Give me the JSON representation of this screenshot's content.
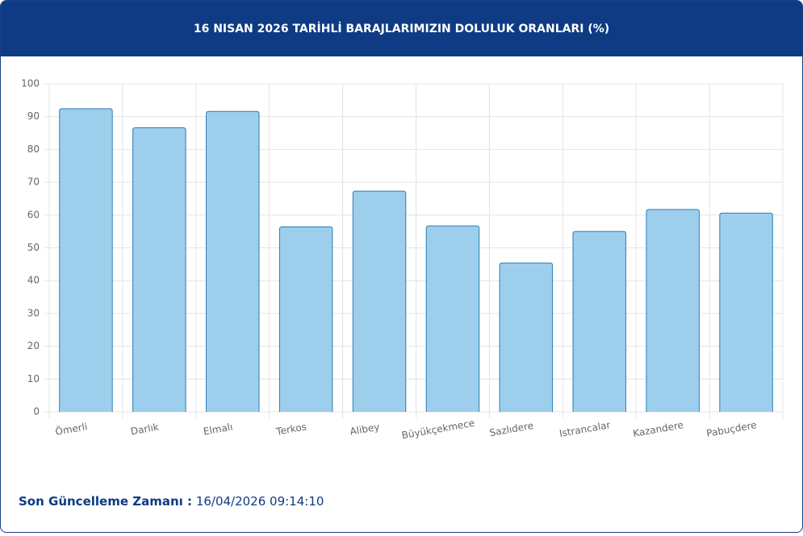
{
  "chart_data": {
    "type": "bar",
    "title": "16 NISAN 2026 TARİHLİ BARAJLARIMIZIN DOLULUK ORANLARI (%)",
    "categories": [
      "Ömerli",
      "Darlık",
      "Elmalı",
      "Terkos",
      "Alibey",
      "Büyükçekmece",
      "Sazlıdere",
      "Istrancalar",
      "Kazandere",
      "Pabuçdere"
    ],
    "values": [
      92.4,
      86.6,
      91.6,
      56.4,
      67.3,
      56.7,
      45.4,
      55.0,
      61.7,
      60.6
    ],
    "color": "#9dcfec",
    "border_color": "#2b7db5",
    "ylim": [
      0,
      100
    ],
    "yticks": [
      0,
      10,
      20,
      30,
      40,
      50,
      60,
      70,
      80,
      90,
      100
    ],
    "grid": true
  },
  "footer": {
    "label": "Son Güncelleme Zamanı :",
    "value": "16/04/2026 09:14:10"
  }
}
